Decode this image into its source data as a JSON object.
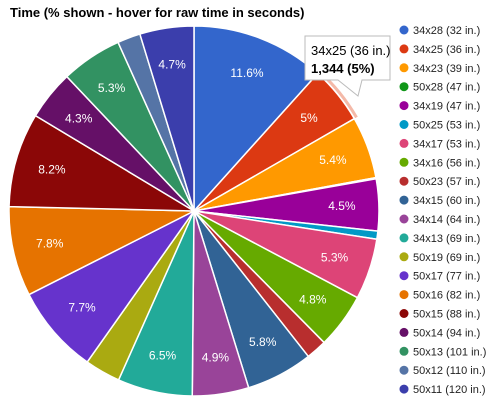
{
  "chart_data": {
    "type": "pie",
    "title": "Time (% shown - hover for raw time in seconds)",
    "legend_position": "right",
    "start_angle_deg": 0,
    "slices": [
      {
        "label": "34x28 (32 in.)",
        "value": 11.6,
        "display": "11.6%",
        "color": "#3366cc"
      },
      {
        "label": "34x25 (36 in.)",
        "value": 5.0,
        "display": "5%",
        "color": "#dc3912"
      },
      {
        "label": "34x23 (39 in.)",
        "value": 5.4,
        "display": "5.4%",
        "color": "#ff9900"
      },
      {
        "label": "50x28 (47 in.)",
        "value": 0.1,
        "display": "",
        "color": "#109618"
      },
      {
        "label": "34x19 (47 in.)",
        "value": 4.5,
        "display": "4.5%",
        "color": "#990099"
      },
      {
        "label": "50x25 (53 in.)",
        "value": 0.7,
        "display": "",
        "color": "#0099c6"
      },
      {
        "label": "34x17 (53 in.)",
        "value": 5.3,
        "display": "5.3%",
        "color": "#dd4477"
      },
      {
        "label": "34x16 (56 in.)",
        "value": 4.8,
        "display": "4.8%",
        "color": "#66aa00"
      },
      {
        "label": "50x23 (57 in.)",
        "value": 1.8,
        "display": "",
        "color": "#b82e2e"
      },
      {
        "label": "34x15 (60 in.)",
        "value": 5.8,
        "display": "5.8%",
        "color": "#316395"
      },
      {
        "label": "34x14 (64 in.)",
        "value": 4.9,
        "display": "4.9%",
        "color": "#994499"
      },
      {
        "label": "34x13 (69 in.)",
        "value": 6.5,
        "display": "6.5%",
        "color": "#22aa99"
      },
      {
        "label": "50x19 (69 in.)",
        "value": 3.1,
        "display": "",
        "color": "#aaaa11"
      },
      {
        "label": "50x17 (77 in.)",
        "value": 7.7,
        "display": "7.7%",
        "color": "#6633cc"
      },
      {
        "label": "50x16 (82 in.)",
        "value": 7.8,
        "display": "7.8%",
        "color": "#e67300"
      },
      {
        "label": "50x15 (88 in.)",
        "value": 8.2,
        "display": "8.2%",
        "color": "#8b0707"
      },
      {
        "label": "50x14 (94 in.)",
        "value": 4.3,
        "display": "4.3%",
        "color": "#651067"
      },
      {
        "label": "50x13 (101 in.)",
        "value": 5.3,
        "display": "5.3%",
        "color": "#329262"
      },
      {
        "label": "50x12 (110 in.)",
        "value": 2.0,
        "display": "",
        "color": "#5574a6"
      },
      {
        "label": "50x11 (120 in.)",
        "value": 4.7,
        "display": "4.7%",
        "color": "#3b3eac"
      }
    ],
    "tooltip": {
      "slice_index": 1,
      "line1": "34x25 (36 in.)",
      "line2": "1,344 (5%)"
    }
  }
}
